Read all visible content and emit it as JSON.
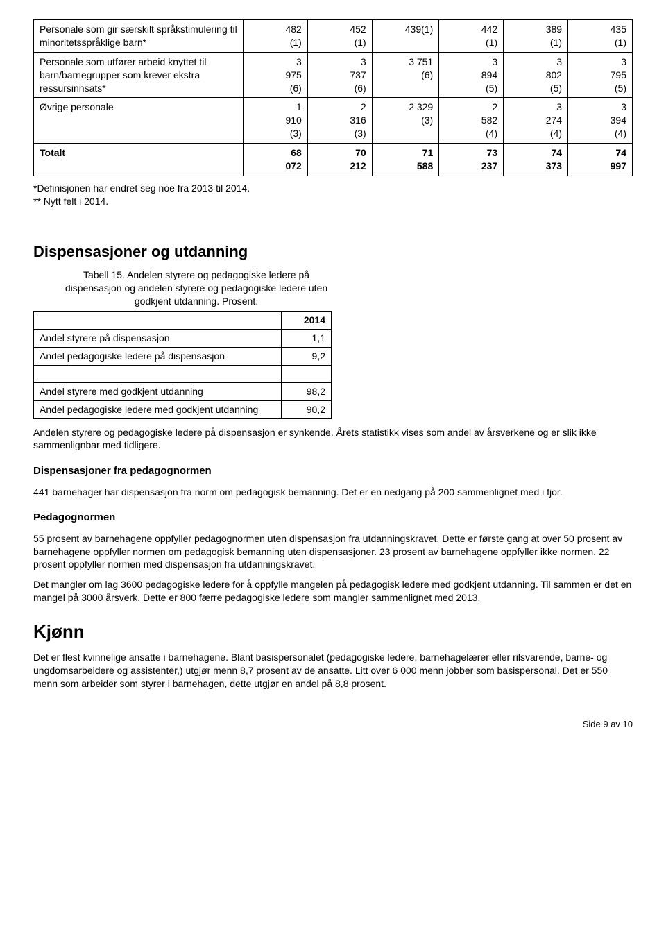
{
  "table1": {
    "rows": [
      {
        "label": "Personale som gir særskilt språkstimulering til minoritetsspråklige barn*",
        "cells": [
          "482\n(1)",
          "452\n(1)",
          "439(1)",
          "442\n(1)",
          "389\n(1)",
          "435\n(1)"
        ]
      },
      {
        "label": "Personale som utfører arbeid knyttet til barn/barnegrupper som krever ekstra ressursinnsats*",
        "cells": [
          "3\n975\n(6)",
          "3\n737\n(6)",
          "3 751\n(6)",
          "3\n894\n(5)",
          "3\n802\n(5)",
          "3\n795\n(5)"
        ]
      },
      {
        "label": "Øvrige personale",
        "cells": [
          "1\n910\n(3)",
          "2\n316\n(3)",
          "2 329\n(3)",
          "2\n582\n(4)",
          "3\n274\n(4)",
          "3\n394\n(4)"
        ]
      },
      {
        "label": "Totalt",
        "cells": [
          "68\n072",
          "70\n212",
          "71\n588",
          "73\n237",
          "74\n373",
          "74\n997"
        ],
        "total": true
      }
    ]
  },
  "footnotes": {
    "line1": "*Definisjonen har endret seg noe fra 2013 til 2014.",
    "line2": "** Nytt felt i 2014."
  },
  "section_disp_title": "Dispensasjoner og utdanning",
  "table2": {
    "caption": "Tabell 15. Andelen styrere og pedagogiske ledere på dispensasjon og andelen styrere og pedagogiske ledere uten godkjent utdanning. Prosent.",
    "header_year": "2014",
    "rows": [
      {
        "label": "Andel styrere på dispensasjon",
        "value": "1,1"
      },
      {
        "label": "Andel pedagogiske ledere på dispensasjon",
        "value": "9,2"
      }
    ],
    "rows2": [
      {
        "label": "Andel styrere med godkjent utdanning",
        "value": "98,2"
      },
      {
        "label": "Andel pedagogiske ledere med godkjent utdanning",
        "value": "90,2"
      }
    ]
  },
  "para_synkende": "Andelen styrere og pedagogiske ledere på dispensasjon er synkende. Årets statistikk vises som andel av årsverkene og er slik ikke sammenlignbar med tidligere.",
  "sub_pedagognorm_disp": "Dispensasjoner fra pedagognormen",
  "para_441": "441 barnehager har dispensasjon fra norm om pedagogisk bemanning. Det er en nedgang på 200 sammenlignet med i fjor.",
  "sub_pedagognormen": "Pedagognormen",
  "para_55": "55 prosent av barnehagene oppfyller pedagognormen uten dispensasjon fra utdanningskravet. Dette er første gang at over 50 prosent av barnehagene oppfyller normen om pedagogisk bemanning uten dispensasjoner. 23 prosent av barnehagene oppfyller ikke normen. 22 prosent oppfyller normen med dispensasjon fra utdanningskravet.",
  "para_3600": "Det mangler om lag 3600 pedagogiske ledere for å oppfylle mangelen på pedagogisk ledere med godkjent utdanning. Til sammen er det en mangel på 3000 årsverk. Dette er 800 færre pedagogiske ledere som mangler sammenlignet med 2013.",
  "section_kjonn": "Kjønn",
  "para_kjonn": "Det er flest kvinnelige ansatte i barnehagene. Blant basispersonalet (pedagogiske ledere, barnehagelærer eller rilsvarende, barne- og ungdomsarbeidere og assistenter,) utgjør menn 8,7 prosent av de ansatte. Litt over 6 000 menn jobber som basispersonal. Det er 550 menn som arbeider som styrer i barnehagen, dette utgjør en andel på 8,8 prosent.",
  "footer": "Side 9 av 10"
}
